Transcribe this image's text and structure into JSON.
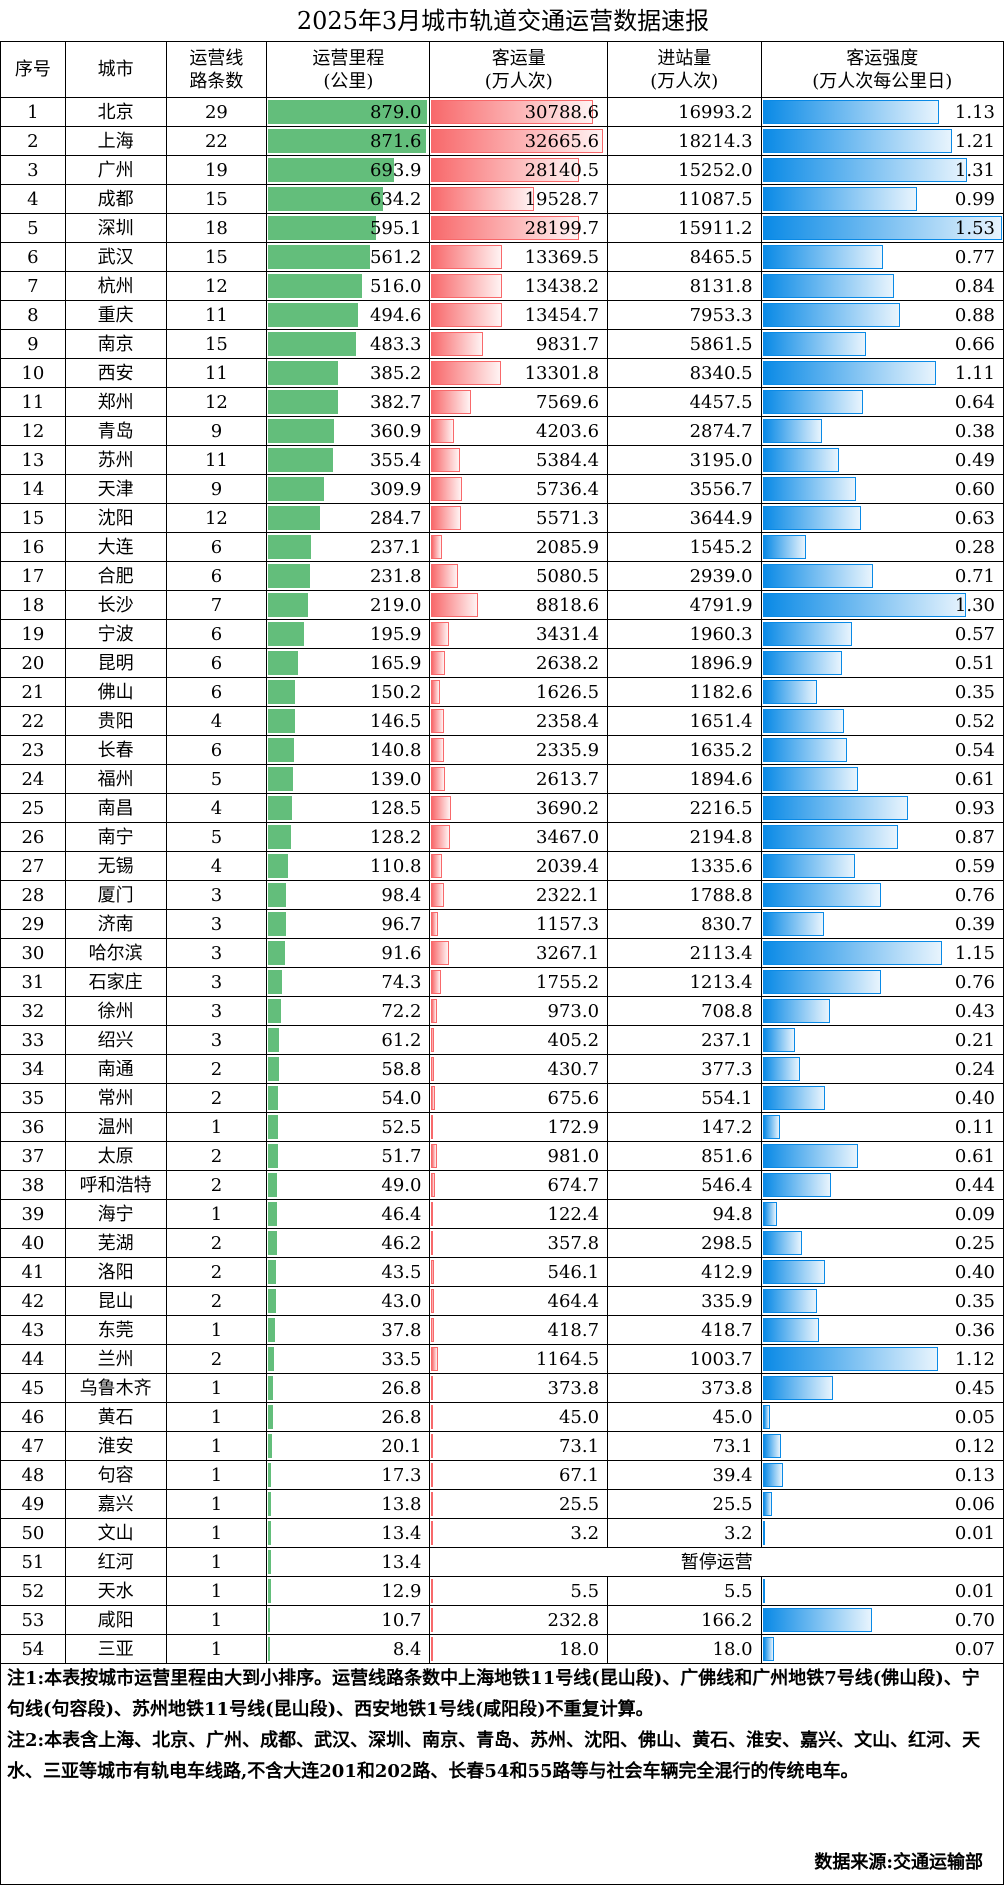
{
  "title": "2025年3月城市轨道交通运营数据速报",
  "headers": {
    "seq": "序号",
    "city": "城市",
    "lines_1": "运营线",
    "lines_2": "路条数",
    "mileage_1": "运营里程",
    "mileage_2": "(公里)",
    "ridership_1": "客运量",
    "ridership_2": "(万人次)",
    "entries_1": "进站量",
    "entries_2": "(万人次)",
    "intensity_1": "客运强度",
    "intensity_2": "(万人次每公里日)"
  },
  "rows": [
    {
      "seq": "1",
      "city": "北京",
      "lines": "29",
      "mileage": "879.0",
      "ridership": "30788.6",
      "entries": "16993.2",
      "intensity": "1.13"
    },
    {
      "seq": "2",
      "city": "上海",
      "lines": "22",
      "mileage": "871.6",
      "ridership": "32665.6",
      "entries": "18214.3",
      "intensity": "1.21"
    },
    {
      "seq": "3",
      "city": "广州",
      "lines": "19",
      "mileage": "693.9",
      "ridership": "28140.5",
      "entries": "15252.0",
      "intensity": "1.31"
    },
    {
      "seq": "4",
      "city": "成都",
      "lines": "15",
      "mileage": "634.2",
      "ridership": "19528.7",
      "entries": "11087.5",
      "intensity": "0.99"
    },
    {
      "seq": "5",
      "city": "深圳",
      "lines": "18",
      "mileage": "595.1",
      "ridership": "28199.7",
      "entries": "15911.2",
      "intensity": "1.53"
    },
    {
      "seq": "6",
      "city": "武汉",
      "lines": "15",
      "mileage": "561.2",
      "ridership": "13369.5",
      "entries": "8465.5",
      "intensity": "0.77"
    },
    {
      "seq": "7",
      "city": "杭州",
      "lines": "12",
      "mileage": "516.0",
      "ridership": "13438.2",
      "entries": "8131.8",
      "intensity": "0.84"
    },
    {
      "seq": "8",
      "city": "重庆",
      "lines": "11",
      "mileage": "494.6",
      "ridership": "13454.7",
      "entries": "7953.3",
      "intensity": "0.88"
    },
    {
      "seq": "9",
      "city": "南京",
      "lines": "15",
      "mileage": "483.3",
      "ridership": "9831.7",
      "entries": "5861.5",
      "intensity": "0.66"
    },
    {
      "seq": "10",
      "city": "西安",
      "lines": "11",
      "mileage": "385.2",
      "ridership": "13301.8",
      "entries": "8340.5",
      "intensity": "1.11"
    },
    {
      "seq": "11",
      "city": "郑州",
      "lines": "12",
      "mileage": "382.7",
      "ridership": "7569.6",
      "entries": "4457.5",
      "intensity": "0.64"
    },
    {
      "seq": "12",
      "city": "青岛",
      "lines": "9",
      "mileage": "360.9",
      "ridership": "4203.6",
      "entries": "2874.7",
      "intensity": "0.38"
    },
    {
      "seq": "13",
      "city": "苏州",
      "lines": "11",
      "mileage": "355.4",
      "ridership": "5384.4",
      "entries": "3195.0",
      "intensity": "0.49"
    },
    {
      "seq": "14",
      "city": "天津",
      "lines": "9",
      "mileage": "309.9",
      "ridership": "5736.4",
      "entries": "3556.7",
      "intensity": "0.60"
    },
    {
      "seq": "15",
      "city": "沈阳",
      "lines": "12",
      "mileage": "284.7",
      "ridership": "5571.3",
      "entries": "3644.9",
      "intensity": "0.63"
    },
    {
      "seq": "16",
      "city": "大连",
      "lines": "6",
      "mileage": "237.1",
      "ridership": "2085.9",
      "entries": "1545.2",
      "intensity": "0.28"
    },
    {
      "seq": "17",
      "city": "合肥",
      "lines": "6",
      "mileage": "231.8",
      "ridership": "5080.5",
      "entries": "2939.0",
      "intensity": "0.71"
    },
    {
      "seq": "18",
      "city": "长沙",
      "lines": "7",
      "mileage": "219.0",
      "ridership": "8818.6",
      "entries": "4791.9",
      "intensity": "1.30"
    },
    {
      "seq": "19",
      "city": "宁波",
      "lines": "6",
      "mileage": "195.9",
      "ridership": "3431.4",
      "entries": "1960.3",
      "intensity": "0.57"
    },
    {
      "seq": "20",
      "city": "昆明",
      "lines": "6",
      "mileage": "165.9",
      "ridership": "2638.2",
      "entries": "1896.9",
      "intensity": "0.51"
    },
    {
      "seq": "21",
      "city": "佛山",
      "lines": "6",
      "mileage": "150.2",
      "ridership": "1626.5",
      "entries": "1182.6",
      "intensity": "0.35"
    },
    {
      "seq": "22",
      "city": "贵阳",
      "lines": "4",
      "mileage": "146.5",
      "ridership": "2358.4",
      "entries": "1651.4",
      "intensity": "0.52"
    },
    {
      "seq": "23",
      "city": "长春",
      "lines": "6",
      "mileage": "140.8",
      "ridership": "2335.9",
      "entries": "1635.2",
      "intensity": "0.54"
    },
    {
      "seq": "24",
      "city": "福州",
      "lines": "5",
      "mileage": "139.0",
      "ridership": "2613.7",
      "entries": "1894.6",
      "intensity": "0.61"
    },
    {
      "seq": "25",
      "city": "南昌",
      "lines": "4",
      "mileage": "128.5",
      "ridership": "3690.2",
      "entries": "2216.5",
      "intensity": "0.93"
    },
    {
      "seq": "26",
      "city": "南宁",
      "lines": "5",
      "mileage": "128.2",
      "ridership": "3467.0",
      "entries": "2194.8",
      "intensity": "0.87"
    },
    {
      "seq": "27",
      "city": "无锡",
      "lines": "4",
      "mileage": "110.8",
      "ridership": "2039.4",
      "entries": "1335.6",
      "intensity": "0.59"
    },
    {
      "seq": "28",
      "city": "厦门",
      "lines": "3",
      "mileage": "98.4",
      "ridership": "2322.1",
      "entries": "1788.8",
      "intensity": "0.76"
    },
    {
      "seq": "29",
      "city": "济南",
      "lines": "3",
      "mileage": "96.7",
      "ridership": "1157.3",
      "entries": "830.7",
      "intensity": "0.39"
    },
    {
      "seq": "30",
      "city": "哈尔滨",
      "lines": "3",
      "mileage": "91.6",
      "ridership": "3267.1",
      "entries": "2113.4",
      "intensity": "1.15"
    },
    {
      "seq": "31",
      "city": "石家庄",
      "lines": "3",
      "mileage": "74.3",
      "ridership": "1755.2",
      "entries": "1213.4",
      "intensity": "0.76"
    },
    {
      "seq": "32",
      "city": "徐州",
      "lines": "3",
      "mileage": "72.2",
      "ridership": "973.0",
      "entries": "708.8",
      "intensity": "0.43"
    },
    {
      "seq": "33",
      "city": "绍兴",
      "lines": "3",
      "mileage": "61.2",
      "ridership": "405.2",
      "entries": "237.1",
      "intensity": "0.21"
    },
    {
      "seq": "34",
      "city": "南通",
      "lines": "2",
      "mileage": "58.8",
      "ridership": "430.7",
      "entries": "377.3",
      "intensity": "0.24"
    },
    {
      "seq": "35",
      "city": "常州",
      "lines": "2",
      "mileage": "54.0",
      "ridership": "675.6",
      "entries": "554.1",
      "intensity": "0.40"
    },
    {
      "seq": "36",
      "city": "温州",
      "lines": "1",
      "mileage": "52.5",
      "ridership": "172.9",
      "entries": "147.2",
      "intensity": "0.11"
    },
    {
      "seq": "37",
      "city": "太原",
      "lines": "2",
      "mileage": "51.7",
      "ridership": "981.0",
      "entries": "851.6",
      "intensity": "0.61"
    },
    {
      "seq": "38",
      "city": "呼和浩特",
      "lines": "2",
      "mileage": "49.0",
      "ridership": "674.7",
      "entries": "546.4",
      "intensity": "0.44"
    },
    {
      "seq": "39",
      "city": "海宁",
      "lines": "1",
      "mileage": "46.4",
      "ridership": "122.4",
      "entries": "94.8",
      "intensity": "0.09"
    },
    {
      "seq": "40",
      "city": "芜湖",
      "lines": "2",
      "mileage": "46.2",
      "ridership": "357.8",
      "entries": "298.5",
      "intensity": "0.25"
    },
    {
      "seq": "41",
      "city": "洛阳",
      "lines": "2",
      "mileage": "43.5",
      "ridership": "546.1",
      "entries": "412.9",
      "intensity": "0.40"
    },
    {
      "seq": "42",
      "city": "昆山",
      "lines": "2",
      "mileage": "43.0",
      "ridership": "464.4",
      "entries": "335.9",
      "intensity": "0.35"
    },
    {
      "seq": "43",
      "city": "东莞",
      "lines": "1",
      "mileage": "37.8",
      "ridership": "418.7",
      "entries": "418.7",
      "intensity": "0.36"
    },
    {
      "seq": "44",
      "city": "兰州",
      "lines": "2",
      "mileage": "33.5",
      "ridership": "1164.5",
      "entries": "1003.7",
      "intensity": "1.12"
    },
    {
      "seq": "45",
      "city": "乌鲁木齐",
      "lines": "1",
      "mileage": "26.8",
      "ridership": "373.8",
      "entries": "373.8",
      "intensity": "0.45"
    },
    {
      "seq": "46",
      "city": "黄石",
      "lines": "1",
      "mileage": "26.8",
      "ridership": "45.0",
      "entries": "45.0",
      "intensity": "0.05"
    },
    {
      "seq": "47",
      "city": "淮安",
      "lines": "1",
      "mileage": "20.1",
      "ridership": "73.1",
      "entries": "73.1",
      "intensity": "0.12"
    },
    {
      "seq": "48",
      "city": "句容",
      "lines": "1",
      "mileage": "17.3",
      "ridership": "67.1",
      "entries": "39.4",
      "intensity": "0.13"
    },
    {
      "seq": "49",
      "city": "嘉兴",
      "lines": "1",
      "mileage": "13.8",
      "ridership": "25.5",
      "entries": "25.5",
      "intensity": "0.06"
    },
    {
      "seq": "50",
      "city": "文山",
      "lines": "1",
      "mileage": "13.4",
      "ridership": "3.2",
      "entries": "3.2",
      "intensity": "0.01"
    },
    {
      "seq": "51",
      "city": "红河",
      "lines": "1",
      "mileage": "13.4",
      "suspended": "暂停运营"
    },
    {
      "seq": "52",
      "city": "天水",
      "lines": "1",
      "mileage": "12.9",
      "ridership": "5.5",
      "entries": "5.5",
      "intensity": "0.01"
    },
    {
      "seq": "53",
      "city": "咸阳",
      "lines": "1",
      "mileage": "10.7",
      "ridership": "232.8",
      "entries": "166.2",
      "intensity": "0.70"
    },
    {
      "seq": "54",
      "city": "三亚",
      "lines": "1",
      "mileage": "8.4",
      "ridership": "18.0",
      "entries": "18.0",
      "intensity": "0.07"
    }
  ],
  "notes": {
    "note1": "注1:本表按城市运营里程由大到小排序。运营线路条数中上海地铁11号线(昆山段)、广佛线和广州地铁7号线(佛山段)、宁句线(句容段)、苏州地铁11号线(昆山段)、西安地铁1号线(咸阳段)不重复计算。",
    "note2": "注2:本表含上海、北京、广州、成都、武汉、深圳、南京、青岛、苏州、沈阳、佛山、黄石、淮安、嘉兴、文山、红河、天水、三亚等城市有轨电车线路,不含大连201和202路、长春54和55路等与社会车辆完全混行的传统电车。",
    "source": "数据来源:交通运输部"
  },
  "colors": {
    "mileage_bar": "#63be7b",
    "ridership_bar": "#f8696b",
    "intensity_bar": "#0a8ae6"
  }
}
